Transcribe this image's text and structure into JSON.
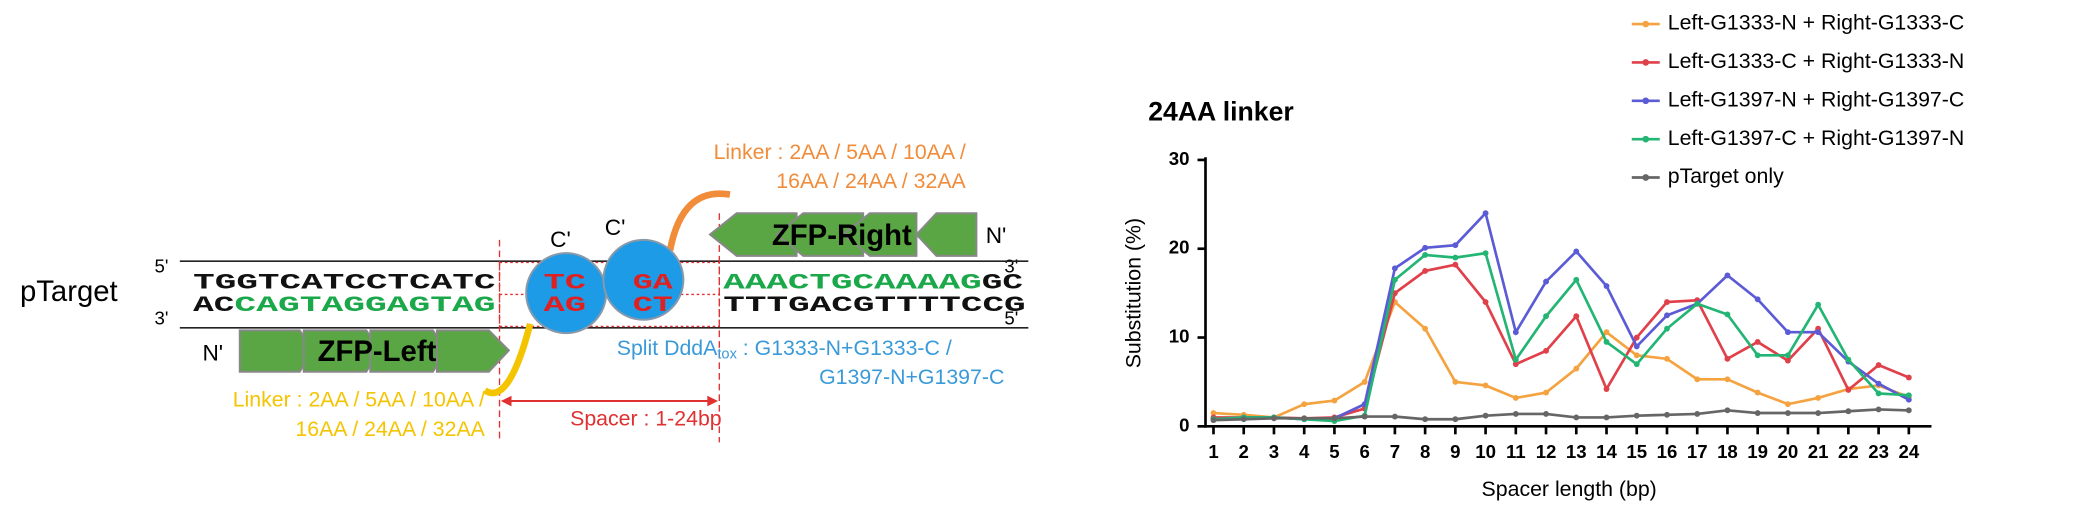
{
  "diagram": {
    "label": "pTarget",
    "ends": {
      "top_left": "5'",
      "bottom_left": "3'",
      "top_right": "3'",
      "bottom_right": "5'"
    },
    "top_strand": [
      "TGGTCATCCTCATC",
      "TC",
      "GA",
      "AAACTGCAAAAG",
      "GC"
    ],
    "bottom_strand": [
      "AC",
      "CAGTAGGAGTAG",
      "AG",
      "CT",
      "TTTGACGTTTTCCG"
    ],
    "c_term_left": "C'",
    "c_term_right": "C'",
    "zfp_right": "ZFP-Right",
    "zfp_right_n": "N'",
    "zfp_left": "ZFP-Left",
    "zfp_left_n": "N'",
    "linker_right": [
      "Linker : 2AA / 5AA / 10AA /",
      "16AA / 24AA / 32AA"
    ],
    "linker_left": [
      "Linker : 2AA / 5AA / 10AA /",
      "16AA / 24AA / 32AA"
    ],
    "split": {
      "name": "Split DddA",
      "sub": "tox",
      "rest": " : G1333-N+G1333-C /",
      "line2": "G1397-N+G1397-C"
    },
    "spacer": "Spacer : 1-24bp"
  },
  "chart_data": {
    "type": "line",
    "title": "24AA linker",
    "x_label": "Spacer length (bp)",
    "y_label": "Substitution (%)",
    "categories": [
      "1",
      "2",
      "3",
      "4",
      "5",
      "6",
      "7",
      "8",
      "9",
      "10",
      "11",
      "12",
      "13",
      "14",
      "15",
      "16",
      "17",
      "18",
      "19",
      "20",
      "21",
      "22",
      "23",
      "24"
    ],
    "ylim": [
      0,
      30
    ],
    "yticks": [
      0,
      10,
      20,
      30
    ],
    "series": [
      {
        "name": "Left-G1333-N + Right-G1333-C",
        "color": "#f4a340",
        "values": [
          1.5,
          1.3,
          1.0,
          2.5,
          2.9,
          5,
          14,
          11,
          5,
          4.6,
          3.2,
          3.8,
          6.5,
          10.6,
          8,
          7.6,
          5.3,
          5.3,
          3.8,
          2.5,
          3.2,
          4.2,
          4.6,
          3.3
        ]
      },
      {
        "name": "Left-G1333-C + Right-G1333-N",
        "color": "#e0404a",
        "values": [
          1.0,
          1.0,
          1.0,
          0.9,
          1.0,
          2.0,
          15,
          17.5,
          18.2,
          14,
          7,
          8.5,
          12.4,
          4.2,
          10,
          14,
          14.2,
          7.6,
          9.5,
          7.4,
          11,
          4.1,
          6.9,
          5.5
        ]
      },
      {
        "name": "Left-G1397-N + Right-G1397-C",
        "color": "#5b5bd6",
        "values": [
          0.8,
          1.0,
          1.0,
          0.8,
          0.9,
          2.5,
          17.8,
          20.1,
          20.4,
          24,
          10.6,
          16.3,
          19.7,
          15.8,
          9,
          12.5,
          13.8,
          17,
          14.3,
          10.6,
          10.6,
          7.3,
          4.8,
          3
        ]
      },
      {
        "name": "Left-G1397-C + Right-G1397-N",
        "color": "#22b573",
        "values": [
          0.8,
          1.0,
          1.0,
          0.8,
          0.6,
          1.2,
          16.5,
          19.3,
          19,
          19.5,
          7.5,
          12.4,
          16.5,
          9.5,
          7,
          11,
          13.8,
          12.6,
          8,
          8,
          13.7,
          7.5,
          3.7,
          3.5
        ]
      },
      {
        "name": "pTarget only",
        "color": "#666666",
        "values": [
          0.7,
          0.8,
          0.9,
          0.9,
          0.9,
          1.1,
          1.1,
          0.8,
          0.8,
          1.2,
          1.4,
          1.4,
          1.0,
          1.0,
          1.2,
          1.3,
          1.4,
          1.8,
          1.5,
          1.5,
          1.5,
          1.7,
          1.9,
          1.8
        ]
      }
    ]
  }
}
